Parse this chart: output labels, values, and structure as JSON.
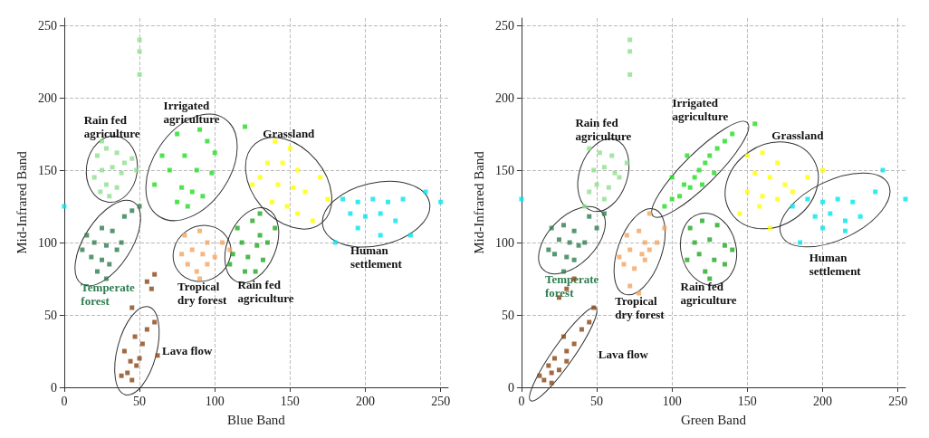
{
  "chart_data": [
    {
      "type": "scatter",
      "xlabel": "Blue Band",
      "ylabel": "Mid-Infrared Band",
      "xlim": [
        0,
        255
      ],
      "ylim": [
        0,
        255
      ],
      "xticks": [
        0,
        50,
        100,
        150,
        200,
        250
      ],
      "yticks": [
        0,
        50,
        100,
        150,
        200,
        250
      ],
      "grid": true,
      "marker": "square",
      "series": [
        {
          "name": "Rain fed\nagriculture",
          "color": "#8fe08f",
          "x": [
            22,
            28,
            35,
            25,
            32,
            38,
            20,
            28,
            35,
            30,
            40,
            24,
            45,
            48,
            25
          ],
          "values": [
            160,
            165,
            162,
            150,
            152,
            148,
            145,
            140,
            138,
            132,
            155,
            135,
            158,
            150,
            170
          ]
        },
        {
          "color": "#8fe08f",
          "x": [
            50,
            50,
            50
          ],
          "values": [
            240,
            232,
            216
          ]
        },
        {
          "name": "Irrigated\nagriculture",
          "color": "#22dd22",
          "x": [
            75,
            90,
            95,
            80,
            100,
            70,
            88,
            98,
            78,
            85,
            92,
            75,
            82,
            60,
            120,
            65
          ],
          "values": [
            175,
            178,
            170,
            160,
            162,
            150,
            150,
            148,
            138,
            135,
            132,
            128,
            125,
            140,
            180,
            160
          ]
        },
        {
          "name": "Temperate\nforest",
          "color": "#2e7d4f",
          "x": [
            15,
            25,
            32,
            20,
            28,
            35,
            18,
            25,
            30,
            22,
            38,
            12,
            28,
            45,
            50,
            40
          ],
          "values": [
            105,
            110,
            108,
            100,
            98,
            95,
            90,
            88,
            85,
            80,
            100,
            95,
            75,
            122,
            125,
            118
          ]
        },
        {
          "name": "Tropical\ndry forest",
          "color": "#f4a460",
          "x": [
            80,
            90,
            95,
            85,
            92,
            100,
            82,
            88,
            95,
            78,
            105,
            90,
            110
          ],
          "values": [
            105,
            108,
            100,
            95,
            92,
            90,
            85,
            80,
            85,
            92,
            100,
            75,
            95
          ]
        },
        {
          "name": "Lava flow",
          "color": "#8b4513",
          "x": [
            42,
            45,
            48,
            50,
            40,
            52,
            47,
            55,
            45,
            62,
            60,
            38,
            44
          ],
          "values": [
            10,
            5,
            15,
            20,
            25,
            30,
            35,
            40,
            55,
            22,
            45,
            8,
            18
          ]
        },
        {
          "color": "#8b4513",
          "x": [
            55,
            58,
            60
          ],
          "values": [
            73,
            68,
            78
          ]
        },
        {
          "name": "Rain fed\nagriculture",
          "color": "#22a822",
          "x": [
            115,
            125,
            130,
            118,
            128,
            135,
            112,
            122,
            132,
            120,
            127,
            110,
            140,
            130
          ],
          "values": [
            110,
            115,
            105,
            100,
            98,
            100,
            92,
            90,
            88,
            80,
            80,
            85,
            110,
            120
          ]
        },
        {
          "name": "Grassland",
          "color": "#ffff00",
          "x": [
            140,
            150,
            135,
            145,
            155,
            130,
            142,
            152,
            160,
            138,
            148,
            155,
            125,
            170,
            165,
            175
          ],
          "values": [
            170,
            165,
            155,
            155,
            150,
            145,
            140,
            138,
            135,
            128,
            125,
            120,
            140,
            145,
            115,
            130
          ]
        },
        {
          "name": "Human\nsettlement",
          "color": "#00e5ee",
          "x": [
            185,
            195,
            205,
            215,
            225,
            190,
            200,
            210,
            220,
            195,
            210,
            230,
            240,
            180
          ],
          "values": [
            130,
            128,
            130,
            128,
            130,
            120,
            118,
            120,
            115,
            110,
            105,
            105,
            135,
            100
          ]
        },
        {
          "color": "#00e5ee",
          "x": [
            0,
            250
          ],
          "values": [
            125,
            128
          ]
        }
      ]
    },
    {
      "type": "scatter",
      "xlabel": "Green Band",
      "ylabel": "Mid-Infrared Band",
      "xlim": [
        0,
        255
      ],
      "ylim": [
        0,
        255
      ],
      "xticks": [
        0,
        50,
        100,
        150,
        200,
        250
      ],
      "yticks": [
        0,
        50,
        100,
        150,
        200,
        250
      ],
      "grid": true,
      "marker": "square",
      "series": [
        {
          "name": "Rain fed\nagriculture",
          "color": "#8fe08f",
          "x": [
            45,
            52,
            60,
            48,
            55,
            62,
            50,
            58,
            65,
            45,
            55,
            70,
            42
          ],
          "values": [
            165,
            162,
            160,
            150,
            152,
            148,
            140,
            138,
            145,
            135,
            130,
            155,
            125
          ]
        },
        {
          "color": "#8fe08f",
          "x": [
            72,
            72,
            72
          ],
          "values": [
            240,
            232,
            216
          ]
        },
        {
          "name": "Irrigated\nagriculture",
          "color": "#22dd22",
          "x": [
            95,
            100,
            105,
            108,
            112,
            115,
            118,
            122,
            125,
            130,
            135,
            140,
            100,
            120,
            110,
            155,
            128
          ],
          "values": [
            125,
            130,
            132,
            140,
            138,
            145,
            150,
            155,
            160,
            165,
            170,
            175,
            145,
            140,
            160,
            182,
            148
          ]
        },
        {
          "name": "Temperate\nforest",
          "color": "#2e7d4f",
          "x": [
            20,
            28,
            35,
            25,
            32,
            38,
            22,
            30,
            35,
            18,
            42,
            28,
            45,
            55,
            50
          ],
          "values": [
            110,
            112,
            108,
            102,
            100,
            98,
            92,
            90,
            88,
            95,
            100,
            80,
            118,
            120,
            110
          ]
        },
        {
          "name": "Tropical\ndry forest",
          "color": "#f4a460",
          "x": [
            70,
            78,
            82,
            72,
            80,
            85,
            68,
            75,
            82,
            65,
            90,
            95,
            85,
            78,
            72
          ],
          "values": [
            105,
            108,
            100,
            95,
            92,
            95,
            85,
            82,
            88,
            90,
            100,
            110,
            120,
            65,
            70
          ]
        },
        {
          "name": "Lava flow",
          "color": "#8b4513",
          "x": [
            15,
            20,
            18,
            25,
            22,
            30,
            35,
            28,
            40,
            45,
            48,
            12,
            20,
            30
          ],
          "values": [
            5,
            10,
            15,
            12,
            20,
            25,
            30,
            35,
            40,
            45,
            55,
            8,
            3,
            18
          ]
        },
        {
          "color": "#8b4513",
          "x": [
            25,
            30,
            35
          ],
          "values": [
            62,
            68,
            75
          ]
        },
        {
          "name": "Rain fed\nagriculture",
          "color": "#22a822",
          "x": [
            112,
            120,
            130,
            115,
            125,
            135,
            118,
            128,
            122,
            135,
            110,
            140,
            125
          ],
          "values": [
            110,
            115,
            112,
            100,
            102,
            98,
            92,
            88,
            80,
            85,
            88,
            95,
            75
          ]
        },
        {
          "name": "Grassland",
          "color": "#ffff00",
          "x": [
            150,
            160,
            170,
            155,
            165,
            175,
            150,
            160,
            170,
            180,
            158,
            190,
            200,
            165,
            145
          ],
          "values": [
            160,
            162,
            155,
            148,
            145,
            140,
            135,
            132,
            130,
            135,
            125,
            145,
            150,
            110,
            120
          ]
        },
        {
          "name": "Human\nsettlement",
          "color": "#00e5ee",
          "x": [
            180,
            190,
            200,
            210,
            220,
            195,
            205,
            215,
            225,
            200,
            215,
            235,
            240,
            185
          ],
          "values": [
            125,
            130,
            128,
            130,
            128,
            118,
            120,
            115,
            118,
            110,
            108,
            135,
            150,
            100
          ]
        },
        {
          "color": "#00e5ee",
          "x": [
            0,
            255
          ],
          "values": [
            130,
            130
          ]
        }
      ]
    }
  ]
}
